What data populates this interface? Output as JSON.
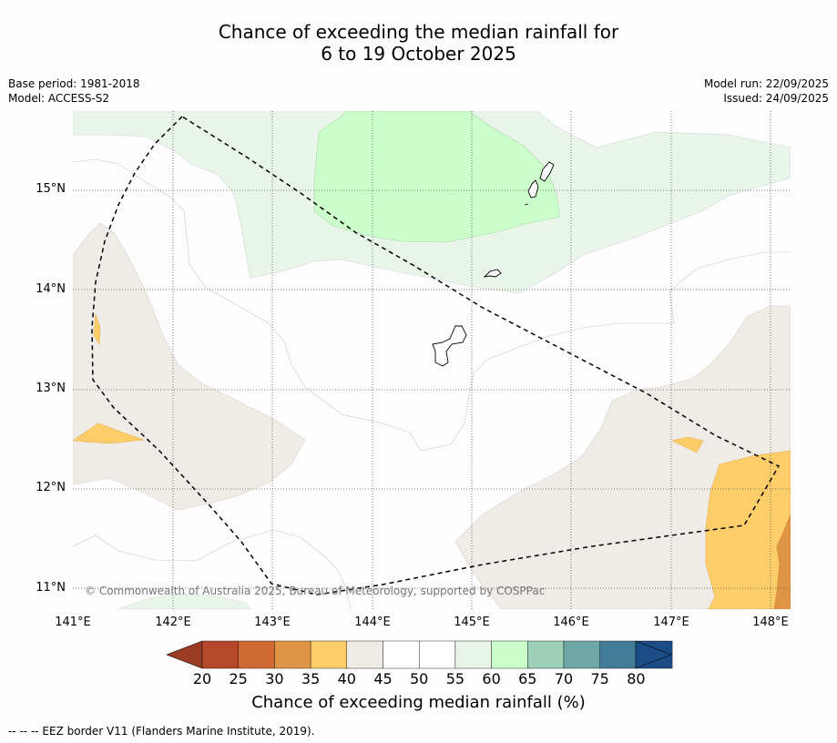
{
  "title": {
    "line1": "Chance of exceeding the median rainfall for",
    "line2": "6 to 19 October 2025"
  },
  "meta": {
    "base_period": "Base period: 1981-2018",
    "model": "Model: ACCESS-S2",
    "model_run": "Model run: 22/09/2025",
    "issued": "Issued: 24/09/2025"
  },
  "map": {
    "lat_labels": [
      "15°N",
      "14°N",
      "13°N",
      "12°N",
      "11°N"
    ],
    "lon_labels": [
      "141°E",
      "142°E",
      "143°E",
      "144°E",
      "145°E",
      "146°E",
      "147°E",
      "148°E"
    ],
    "copyright": "© Commonwealth of Australia 2025, Bureau of Meteorology, supported by COSPPac"
  },
  "colorbar": {
    "ticks": [
      "20",
      "25",
      "30",
      "35",
      "40",
      "45",
      "50",
      "55",
      "60",
      "65",
      "70",
      "75",
      "80"
    ],
    "colors": [
      "#b5482a",
      "#cf6a33",
      "#e09546",
      "#fdcd69",
      "#efebe6",
      "#ffffff",
      "#ffffff",
      "#eaf5ea",
      "#cbfecb",
      "#9dcfb9",
      "#6ea8a6",
      "#427c98",
      "#1b4c85"
    ],
    "low_color": "#9a3b23",
    "high_color": "#1b4c85",
    "label": "Chance of exceeding median rainfall (%)"
  },
  "footnote": "--  --  -- EEZ border V11 (Flanders Marine Institute, 2019)."
}
